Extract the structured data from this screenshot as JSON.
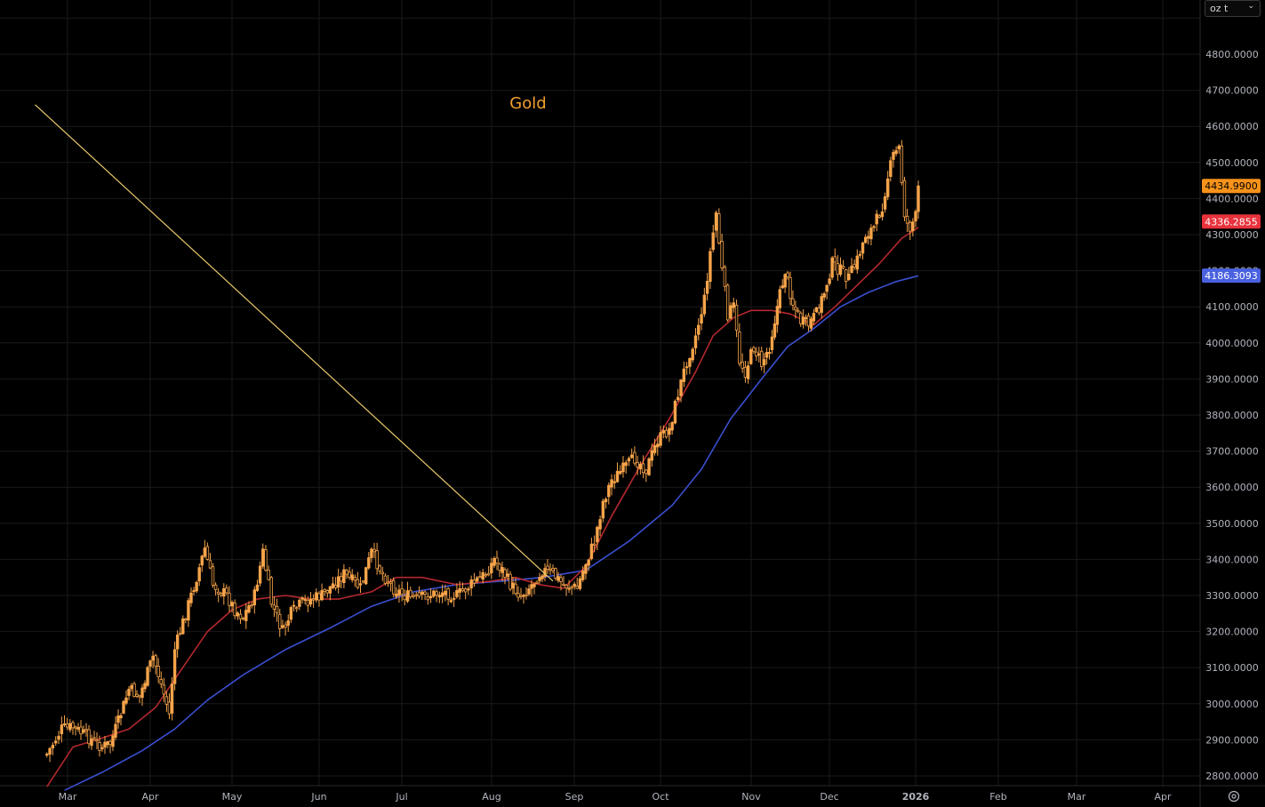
{
  "unit_selector": {
    "value": "oz t",
    "icon": "chevron-down-icon"
  },
  "settings": {
    "icon": "gear-icon"
  },
  "colors": {
    "background": "#000000",
    "grid": "#1a1a1a",
    "candle": "#f7a44a",
    "ma_short": "#b3282e",
    "ma_long": "#3a4fd0",
    "trendline": "#e8c96a",
    "title": "#f0a030",
    "axis_text": "#b2b5be",
    "label_price": "#f7931a",
    "label_short": "#e8323c",
    "label_long": "#4a62e0"
  },
  "chart_data": {
    "type": "candlestick",
    "title": "Gold",
    "ylim": [
      2770,
      4920
    ],
    "yticks": [
      "2800.0000",
      "2900.0000",
      "3000.0000",
      "3100.0000",
      "3200.0000",
      "3300.0000",
      "3400.0000",
      "3500.0000",
      "3600.0000",
      "3700.0000",
      "3800.0000",
      "3900.0000",
      "4000.0000",
      "4100.0000",
      "4200.0000",
      "4300.0000",
      "4400.0000",
      "4500.0000",
      "4600.0000",
      "4700.0000",
      "4800.0000"
    ],
    "xticks": [
      "Mar",
      "Apr",
      "May",
      "Jun",
      "Jul",
      "Aug",
      "Sep",
      "Oct",
      "Nov",
      "Dec",
      "2026",
      "Feb",
      "Mar",
      "Apr"
    ],
    "price_labels": {
      "last": "4434.9900",
      "ma_short": "4336.2855",
      "ma_long": "4186.3093"
    },
    "price_anchors": [
      [
        "Feb 22",
        2860
      ],
      [
        "Feb 27",
        2930
      ],
      [
        "Mar 3",
        2935
      ],
      [
        "Mar 6",
        2920
      ],
      [
        "Mar 10",
        2900
      ],
      [
        "Mar 14",
        2880
      ],
      [
        "Mar 17",
        2890
      ],
      [
        "Mar 20",
        2950
      ],
      [
        "Mar 24",
        3040
      ],
      [
        "Mar 28",
        3020
      ],
      [
        "Apr 2",
        3130
      ],
      [
        "Apr 4",
        3080
      ],
      [
        "Apr 7",
        3000
      ],
      [
        "Apr 8",
        2970
      ],
      [
        "Apr 10",
        3150
      ],
      [
        "Apr 14",
        3250
      ],
      [
        "Apr 18",
        3350
      ],
      [
        "Apr 21",
        3430
      ],
      [
        "Apr 24",
        3330
      ],
      [
        "Apr 29",
        3300
      ],
      [
        "May 2",
        3260
      ],
      [
        "May 5",
        3240
      ],
      [
        "May 9",
        3300
      ],
      [
        "May 12",
        3420
      ],
      [
        "May 15",
        3280
      ],
      [
        "May 19",
        3200
      ],
      [
        "May 22",
        3250
      ],
      [
        "May 26",
        3280
      ],
      [
        "Jun 2",
        3300
      ],
      [
        "Jun 6",
        3330
      ],
      [
        "Jun 10",
        3360
      ],
      [
        "Jun 16",
        3320
      ],
      [
        "Jun 20",
        3420
      ],
      [
        "Jun 24",
        3360
      ],
      [
        "Jun 28",
        3320
      ],
      [
        "Jul 2",
        3300
      ],
      [
        "Jul 6",
        3290
      ],
      [
        "Jul 10",
        3300
      ],
      [
        "Jul 15",
        3310
      ],
      [
        "Jul 20",
        3300
      ],
      [
        "Jul 25",
        3330
      ],
      [
        "Jul 30",
        3360
      ],
      [
        "Aug 2",
        3400
      ],
      [
        "Aug 5",
        3370
      ],
      [
        "Aug 8",
        3330
      ],
      [
        "Aug 12",
        3300
      ],
      [
        "Aug 16",
        3330
      ],
      [
        "Aug 20",
        3370
      ],
      [
        "Aug 24",
        3360
      ],
      [
        "Aug 28",
        3330
      ],
      [
        "Sep 2",
        3320
      ],
      [
        "Sep 5",
        3390
      ],
      [
        "Sep 8",
        3450
      ],
      [
        "Sep 11",
        3560
      ],
      [
        "Sep 14",
        3620
      ],
      [
        "Sep 18",
        3650
      ],
      [
        "Sep 22",
        3680
      ],
      [
        "Sep 26",
        3650
      ],
      [
        "Sep 30",
        3730
      ],
      [
        "Oct 4",
        3760
      ],
      [
        "Oct 7",
        3860
      ],
      [
        "Oct 10",
        3950
      ],
      [
        "Oct 13",
        4020
      ],
      [
        "Oct 16",
        4120
      ],
      [
        "Oct 18",
        4250
      ],
      [
        "Oct 20",
        4360
      ],
      [
        "Oct 22",
        4200
      ],
      [
        "Oct 24",
        4080
      ],
      [
        "Oct 26",
        4100
      ],
      [
        "Oct 28",
        3950
      ],
      [
        "Oct 30",
        3920
      ],
      [
        "Nov 2",
        3990
      ],
      [
        "Nov 5",
        3940
      ],
      [
        "Nov 8",
        3990
      ],
      [
        "Nov 11",
        4100
      ],
      [
        "Nov 14",
        4200
      ],
      [
        "Nov 17",
        4110
      ],
      [
        "Nov 20",
        4060
      ],
      [
        "Nov 23",
        4050
      ],
      [
        "Nov 26",
        4080
      ],
      [
        "Nov 29",
        4140
      ],
      [
        "Dec 2",
        4220
      ],
      [
        "Dec 5",
        4200
      ],
      [
        "Dec 8",
        4180
      ],
      [
        "Dec 11",
        4230
      ],
      [
        "Dec 14",
        4300
      ],
      [
        "Dec 17",
        4320
      ],
      [
        "Dec 20",
        4380
      ],
      [
        "Dec 22",
        4460
      ],
      [
        "Dec 24",
        4520
      ],
      [
        "Dec 26",
        4540
      ],
      [
        "Dec 28",
        4360
      ],
      [
        "Dec 29",
        4330
      ],
      [
        "Dec 30",
        4320
      ],
      [
        "Jan 1",
        4350
      ],
      [
        "Jan 2",
        4430
      ]
    ],
    "ma_short_line": [
      [
        "Feb 22",
        2770
      ],
      [
        "Mar 3",
        2880
      ],
      [
        "Mar 14",
        2905
      ],
      [
        "Mar 24",
        2930
      ],
      [
        "Apr 3",
        2990
      ],
      [
        "Apr 12",
        3090
      ],
      [
        "Apr 22",
        3200
      ],
      [
        "May 1",
        3260
      ],
      [
        "May 10",
        3290
      ],
      [
        "May 20",
        3300
      ],
      [
        "May 29",
        3290
      ],
      [
        "Jun 8",
        3290
      ],
      [
        "Jun 20",
        3310
      ],
      [
        "Jun 29",
        3350
      ],
      [
        "Jul 8",
        3350
      ],
      [
        "Jul 20",
        3330
      ],
      [
        "Aug 1",
        3340
      ],
      [
        "Aug 10",
        3350
      ],
      [
        "Aug 19",
        3330
      ],
      [
        "Aug 28",
        3320
      ],
      [
        "Sep 5",
        3380
      ],
      [
        "Sep 14",
        3520
      ],
      [
        "Sep 24",
        3660
      ],
      [
        "Oct 4",
        3790
      ],
      [
        "Oct 13",
        3920
      ],
      [
        "Oct 19",
        4020
      ],
      [
        "Oct 26",
        4070
      ],
      [
        "Nov 1",
        4090
      ],
      [
        "Nov 9",
        4090
      ],
      [
        "Nov 16",
        4080
      ],
      [
        "Nov 25",
        4050
      ],
      [
        "Dec 3",
        4100
      ],
      [
        "Dec 11",
        4160
      ],
      [
        "Dec 19",
        4220
      ],
      [
        "Dec 27",
        4290
      ],
      [
        "Jan 2",
        4320
      ]
    ],
    "ma_long_line": [
      [
        "Feb 28",
        2760
      ],
      [
        "Mar 14",
        2810
      ],
      [
        "Mar 29",
        2870
      ],
      [
        "Apr 10",
        2930
      ],
      [
        "Apr 22",
        3010
      ],
      [
        "May 5",
        3080
      ],
      [
        "May 20",
        3150
      ],
      [
        "Jun 5",
        3210
      ],
      [
        "Jun 20",
        3270
      ],
      [
        "Jul 5",
        3310
      ],
      [
        "Jul 20",
        3330
      ],
      [
        "Aug 5",
        3340
      ],
      [
        "Aug 20",
        3350
      ],
      [
        "Sep 5",
        3370
      ],
      [
        "Sep 20",
        3450
      ],
      [
        "Oct 5",
        3550
      ],
      [
        "Oct 15",
        3650
      ],
      [
        "Oct 25",
        3790
      ],
      [
        "Nov 5",
        3900
      ],
      [
        "Nov 15",
        3990
      ],
      [
        "Nov 25",
        4040
      ],
      [
        "Dec 5",
        4100
      ],
      [
        "Dec 15",
        4140
      ],
      [
        "Dec 25",
        4170
      ],
      [
        "Jan 2",
        4186
      ]
    ],
    "trendline": [
      [
        "Aug 24",
        3340
      ],
      [
        "Feb 18",
        4660
      ]
    ]
  }
}
